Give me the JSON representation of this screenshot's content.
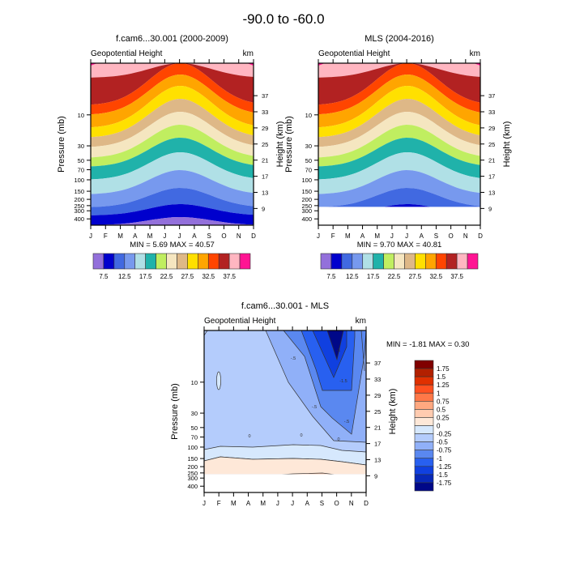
{
  "main_title": "-90.0 to -60.0",
  "months": [
    "J",
    "F",
    "M",
    "A",
    "M",
    "J",
    "J",
    "A",
    "S",
    "O",
    "N",
    "D"
  ],
  "pressure_ticks": [
    10,
    30,
    50,
    70,
    100,
    150,
    200,
    250,
    300,
    400
  ],
  "height_ticks": [
    37,
    33,
    29,
    25,
    21,
    17,
    13,
    9
  ],
  "labels": {
    "left_title": "Geopotential Height",
    "right_unit": "km",
    "ylabel": "Pressure (mb)",
    "y2label": "Height (km)"
  },
  "colors": {
    "abs": [
      "#9370db",
      "#0000cd",
      "#4169e1",
      "#7799ee",
      "#b0e0e6",
      "#20b2aa",
      "#c0ee60",
      "#f5e6c0",
      "#deb887",
      "#ffe000",
      "#ffa500",
      "#ff4500",
      "#b22222",
      "#ffb6c1",
      "#ff1493"
    ],
    "diff": [
      "#800000",
      "#b22000",
      "#e03000",
      "#ff5020",
      "#ff7848",
      "#ffa880",
      "#ffcbb0",
      "#fee8d8",
      "#d6e8fd",
      "#b4ccfc",
      "#90b0f8",
      "#5a88f0",
      "#2860f0",
      "#1040e0",
      "#0828b8",
      "#000888"
    ]
  },
  "chart_data": [
    {
      "type": "heatmap",
      "id": "model",
      "title": "f.cam6...30.001 (2000-2009)",
      "xlabel": "",
      "ylabel": "Pressure (mb)",
      "y2label": "Height (km)",
      "stats": "MIN =   5.69  MAX =  40.57",
      "min": 5.69,
      "max": 40.57,
      "levels": [
        5,
        7.5,
        10,
        12.5,
        15,
        17.5,
        20,
        22.5,
        25,
        27.5,
        30,
        32.5,
        35,
        37.5,
        40
      ],
      "colorbar_labels": [
        "7.5",
        "12.5",
        "17.5",
        "22.5",
        "27.5",
        "32.5",
        "37.5"
      ],
      "bottom_pressure_mb": 500
    },
    {
      "type": "heatmap",
      "id": "obs",
      "title": "MLS (2004-2016)",
      "xlabel": "",
      "ylabel": "Pressure (mb)",
      "y2label": "Height (km)",
      "stats": "MIN =   9.70  MAX =  40.81",
      "min": 9.7,
      "max": 40.81,
      "levels": [
        5,
        7.5,
        10,
        12.5,
        15,
        17.5,
        20,
        22.5,
        25,
        27.5,
        30,
        32.5,
        35,
        37.5,
        40
      ],
      "colorbar_labels": [
        "7.5",
        "12.5",
        "17.5",
        "22.5",
        "27.5",
        "32.5",
        "37.5"
      ],
      "bottom_pressure_mb": 261
    },
    {
      "type": "heatmap",
      "id": "diff",
      "title": "f.cam6...30.001 - MLS",
      "xlabel": "",
      "ylabel": "Pressure (mb)",
      "y2label": "Height (km)",
      "stats": "MIN =  -1.81  MAX =   0.30",
      "min": -1.81,
      "max": 0.3,
      "levels": [
        -1.75,
        -1.5,
        -1.25,
        -1,
        -0.75,
        -0.5,
        -0.25,
        0,
        0.25,
        0.5,
        0.75,
        1,
        1.25,
        1.5,
        1.75
      ],
      "colorbar_labels": [
        "1.75",
        "1.5",
        "1.25",
        "1",
        "0.75",
        "0.5",
        "0.25",
        "0",
        "-0.25",
        "-0.5",
        "-0.75",
        "-1",
        "-1.25",
        "-1.5",
        "-1.75"
      ],
      "contour_labels": [
        "-.5",
        "-1",
        "-1.5",
        "-.5",
        "0",
        "0",
        "0",
        "-.5"
      ],
      "bottom_pressure_mb": 261
    }
  ]
}
